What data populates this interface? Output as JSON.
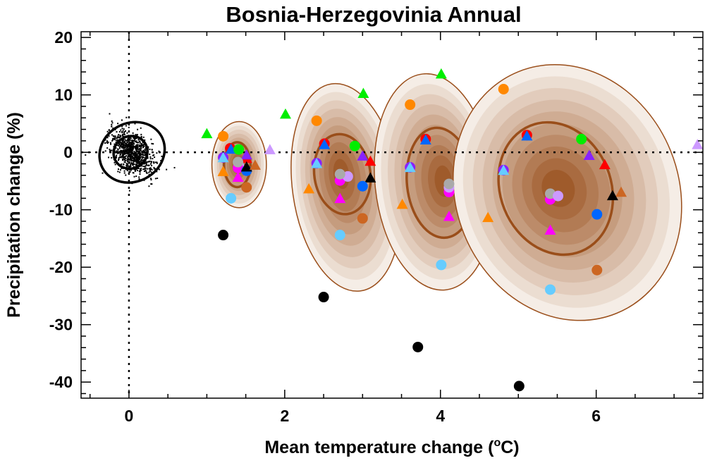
{
  "chart_data": {
    "type": "scatter",
    "title": "Bosnia-Herzegovinia Annual",
    "xlabel": "Mean temperature change (",
    "xlabel_unit_sup": "o",
    "xlabel_unit": "C)",
    "ylabel": "Precipitation change (%)",
    "xlim": [
      -0.615,
      7.37
    ],
    "ylim": [
      -42.8,
      21.0
    ],
    "x_ticks": [
      0,
      2,
      4,
      6
    ],
    "x_tick_labels": [
      "0",
      "2",
      "4",
      "6"
    ],
    "y_ticks": [
      20,
      10,
      0,
      -10,
      -20,
      -30,
      -40
    ],
    "y_tick_labels": [
      "20",
      "10",
      "0",
      "-10",
      "-20",
      "-30",
      "-40"
    ],
    "reference_lines": {
      "x": 0,
      "y": 0,
      "style": "dotted"
    },
    "colors": {
      "green": "#00ee00",
      "orange": "#ff8800",
      "red": "#ff0000",
      "blue": "#0066ff",
      "purple": "#8822ff",
      "lightblue": "#66ccff",
      "gray": "#aaaaaa",
      "lilac": "#cc99ff",
      "magenta": "#ff00ff",
      "black": "#000000",
      "brown": "#cc6622",
      "shade_light": "#f5ede6",
      "shade_dark": "#9a5220",
      "contour": "#9a4e1a"
    },
    "natural_variability": {
      "center": [
        0.04,
        0.0
      ],
      "x_sd": 0.14,
      "y_sd": 1.9,
      "correlation": -0.45,
      "n": 900,
      "outer_contour": {
        "cx": 0.04,
        "cy": 0.0,
        "rx": 0.43,
        "ry": 5.1
      },
      "inner_contour": {
        "cx": 0.02,
        "cy": 0.0,
        "rx": 0.22,
        "ry": 2.8
      }
    },
    "distributions": [
      {
        "outer": {
          "cx": 1.415,
          "cy": -2.15,
          "rx": 0.35,
          "ry": 7.5
        },
        "inner": {
          "cx": 1.39,
          "cy": -2.15,
          "rx": 0.17,
          "ry": 3.9
        },
        "peak": [
          1.4,
          -2.0
        ]
      },
      {
        "outer": {
          "cx": 2.79,
          "cy": -6.1,
          "rx": 0.69,
          "ry": 18.2
        },
        "inner": {
          "cx": 2.74,
          "cy": -3.8,
          "rx": 0.36,
          "ry": 7.0
        },
        "peak": [
          2.72,
          -3.5
        ]
      },
      {
        "outer": {
          "cx": 3.92,
          "cy": -5.15,
          "rx": 0.76,
          "ry": 18.9
        },
        "inner": {
          "cx": 4.0,
          "cy": -5.3,
          "rx": 0.43,
          "ry": 9.6
        },
        "peak": [
          4.05,
          -5.0
        ]
      },
      {
        "outer": {
          "cx": 5.63,
          "cy": -7.0,
          "rx": 1.43,
          "ry": 22.7
        },
        "inner": {
          "cx": 5.48,
          "cy": -6.3,
          "rx": 0.71,
          "ry": 11.8
        },
        "peak": [
          5.5,
          -6.2
        ]
      }
    ],
    "points": [
      {
        "x": 1.0,
        "y": 3.2,
        "shape": "triangle",
        "color": "green"
      },
      {
        "x": 1.21,
        "y": 2.8,
        "shape": "circle",
        "color": "orange"
      },
      {
        "x": 1.3,
        "y": 0.7,
        "shape": "circle",
        "color": "red"
      },
      {
        "x": 1.31,
        "y": 0.5,
        "shape": "triangle",
        "color": "blue"
      },
      {
        "x": 1.41,
        "y": 0.5,
        "shape": "circle",
        "color": "green"
      },
      {
        "x": 1.21,
        "y": -0.9,
        "shape": "circle",
        "color": "purple"
      },
      {
        "x": 1.21,
        "y": -1.0,
        "shape": "triangle",
        "color": "lightblue"
      },
      {
        "x": 1.51,
        "y": -1.1,
        "shape": "triangle",
        "color": "red"
      },
      {
        "x": 1.51,
        "y": -0.5,
        "shape": "triangle",
        "color": "purple"
      },
      {
        "x": 1.41,
        "y": -2.3,
        "shape": "circle",
        "color": "lilac"
      },
      {
        "x": 1.4,
        "y": -2.7,
        "shape": "circle",
        "color": "magenta"
      },
      {
        "x": 1.4,
        "y": -1.7,
        "shape": "circle",
        "color": "gray"
      },
      {
        "x": 1.51,
        "y": -3.2,
        "shape": "circle",
        "color": "blue"
      },
      {
        "x": 1.51,
        "y": -2.6,
        "shape": "triangle",
        "color": "black"
      },
      {
        "x": 1.62,
        "y": -2.3,
        "shape": "triangle",
        "color": "brown"
      },
      {
        "x": 1.21,
        "y": -3.4,
        "shape": "triangle",
        "color": "orange"
      },
      {
        "x": 1.4,
        "y": -4.4,
        "shape": "triangle",
        "color": "magenta"
      },
      {
        "x": 1.51,
        "y": -6.1,
        "shape": "circle",
        "color": "brown"
      },
      {
        "x": 1.31,
        "y": -8.0,
        "shape": "circle",
        "color": "lightblue"
      },
      {
        "x": 1.21,
        "y": -14.4,
        "shape": "circle",
        "color": "black"
      },
      {
        "x": 1.81,
        "y": 0.4,
        "shape": "triangle",
        "color": "lilac"
      },
      {
        "x": 2.01,
        "y": 6.6,
        "shape": "triangle",
        "color": "green"
      },
      {
        "x": 2.41,
        "y": 5.5,
        "shape": "circle",
        "color": "orange"
      },
      {
        "x": 2.51,
        "y": 1.5,
        "shape": "circle",
        "color": "red"
      },
      {
        "x": 2.51,
        "y": 1.3,
        "shape": "triangle",
        "color": "blue"
      },
      {
        "x": 2.9,
        "y": 1.1,
        "shape": "circle",
        "color": "green"
      },
      {
        "x": 2.41,
        "y": -1.9,
        "shape": "circle",
        "color": "purple"
      },
      {
        "x": 2.41,
        "y": -2.0,
        "shape": "triangle",
        "color": "lightblue"
      },
      {
        "x": 3.0,
        "y": -0.7,
        "shape": "triangle",
        "color": "purple"
      },
      {
        "x": 3.1,
        "y": -1.6,
        "shape": "triangle",
        "color": "red"
      },
      {
        "x": 2.71,
        "y": -4.9,
        "shape": "circle",
        "color": "magenta"
      },
      {
        "x": 2.81,
        "y": -4.2,
        "shape": "circle",
        "color": "lilac"
      },
      {
        "x": 2.71,
        "y": -3.8,
        "shape": "circle",
        "color": "gray"
      },
      {
        "x": 3.1,
        "y": -4.5,
        "shape": "triangle",
        "color": "black"
      },
      {
        "x": 3.0,
        "y": -5.9,
        "shape": "circle",
        "color": "blue"
      },
      {
        "x": 2.31,
        "y": -6.4,
        "shape": "triangle",
        "color": "orange"
      },
      {
        "x": 2.71,
        "y": -8.1,
        "shape": "triangle",
        "color": "magenta"
      },
      {
        "x": 3.0,
        "y": -11.5,
        "shape": "circle",
        "color": "brown"
      },
      {
        "x": 2.71,
        "y": -14.4,
        "shape": "circle",
        "color": "lightblue"
      },
      {
        "x": 2.5,
        "y": -25.2,
        "shape": "circle",
        "color": "black"
      },
      {
        "x": 3.01,
        "y": 10.2,
        "shape": "triangle",
        "color": "green"
      },
      {
        "x": 4.01,
        "y": 13.6,
        "shape": "triangle",
        "color": "green"
      },
      {
        "x": 3.61,
        "y": 8.3,
        "shape": "circle",
        "color": "orange"
      },
      {
        "x": 3.81,
        "y": 2.3,
        "shape": "circle",
        "color": "red"
      },
      {
        "x": 3.81,
        "y": 2.1,
        "shape": "triangle",
        "color": "blue"
      },
      {
        "x": 3.61,
        "y": -2.6,
        "shape": "circle",
        "color": "purple"
      },
      {
        "x": 3.61,
        "y": -2.7,
        "shape": "triangle",
        "color": "lightblue"
      },
      {
        "x": 4.11,
        "y": -6.9,
        "shape": "circle",
        "color": "magenta"
      },
      {
        "x": 4.11,
        "y": -6.1,
        "shape": "circle",
        "color": "lilac"
      },
      {
        "x": 4.11,
        "y": -5.5,
        "shape": "circle",
        "color": "gray"
      },
      {
        "x": 3.51,
        "y": -9.1,
        "shape": "triangle",
        "color": "orange"
      },
      {
        "x": 4.11,
        "y": -11.2,
        "shape": "triangle",
        "color": "magenta"
      },
      {
        "x": 4.01,
        "y": -19.6,
        "shape": "circle",
        "color": "lightblue"
      },
      {
        "x": 3.71,
        "y": -33.9,
        "shape": "circle",
        "color": "black"
      },
      {
        "x": 4.81,
        "y": 11.0,
        "shape": "circle",
        "color": "orange"
      },
      {
        "x": 5.11,
        "y": 3.0,
        "shape": "circle",
        "color": "red"
      },
      {
        "x": 5.11,
        "y": 2.8,
        "shape": "triangle",
        "color": "blue"
      },
      {
        "x": 5.81,
        "y": 2.3,
        "shape": "circle",
        "color": "green"
      },
      {
        "x": 5.91,
        "y": -0.6,
        "shape": "triangle",
        "color": "purple"
      },
      {
        "x": 6.11,
        "y": -2.2,
        "shape": "triangle",
        "color": "red"
      },
      {
        "x": 4.81,
        "y": -3.1,
        "shape": "circle",
        "color": "purple"
      },
      {
        "x": 4.81,
        "y": -3.2,
        "shape": "triangle",
        "color": "lightblue"
      },
      {
        "x": 5.41,
        "y": -8.2,
        "shape": "circle",
        "color": "magenta"
      },
      {
        "x": 5.41,
        "y": -7.2,
        "shape": "circle",
        "color": "gray"
      },
      {
        "x": 5.51,
        "y": -7.6,
        "shape": "circle",
        "color": "lilac"
      },
      {
        "x": 6.32,
        "y": -7.0,
        "shape": "triangle",
        "color": "brown"
      },
      {
        "x": 6.21,
        "y": -7.6,
        "shape": "triangle",
        "color": "black"
      },
      {
        "x": 6.01,
        "y": -10.8,
        "shape": "circle",
        "color": "blue"
      },
      {
        "x": 4.61,
        "y": -11.4,
        "shape": "triangle",
        "color": "orange"
      },
      {
        "x": 5.41,
        "y": -13.6,
        "shape": "triangle",
        "color": "magenta"
      },
      {
        "x": 6.01,
        "y": -20.5,
        "shape": "circle",
        "color": "brown"
      },
      {
        "x": 5.41,
        "y": -23.9,
        "shape": "circle",
        "color": "lightblue"
      },
      {
        "x": 5.01,
        "y": -40.7,
        "shape": "circle",
        "color": "black"
      },
      {
        "x": 7.3,
        "y": 1.3,
        "shape": "triangle",
        "color": "lilac"
      }
    ]
  }
}
